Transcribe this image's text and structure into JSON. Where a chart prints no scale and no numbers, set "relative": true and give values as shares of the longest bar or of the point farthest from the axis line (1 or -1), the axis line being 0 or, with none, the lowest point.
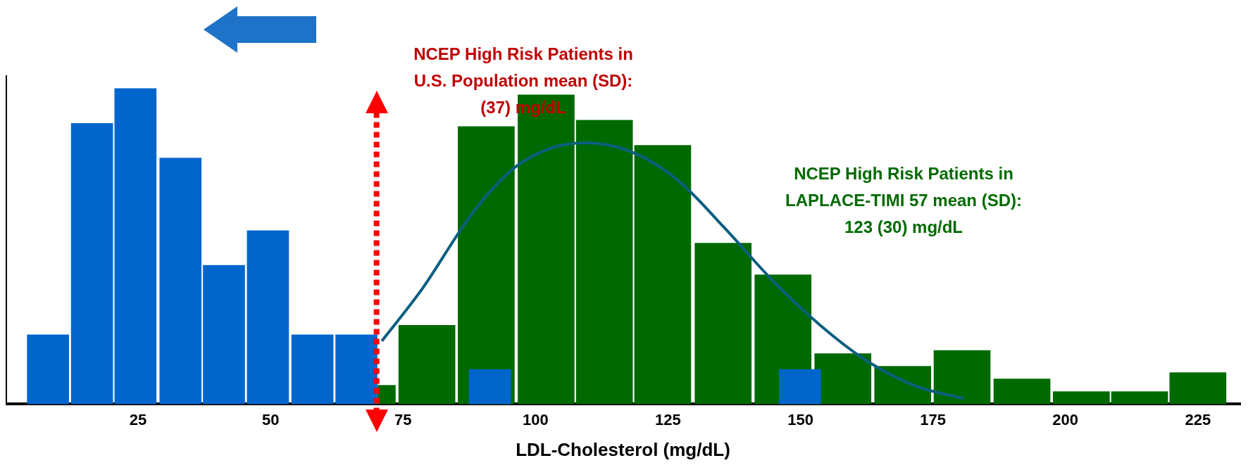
{
  "chart_data": {
    "type": "bar",
    "relative": true,
    "xlabel": "LDL-Cholesterol (mg/dL)",
    "xlim": [
      0,
      233
    ],
    "xticks": [
      25,
      50,
      75,
      100,
      125,
      150,
      175,
      200,
      225
    ],
    "tick_labels": "x",
    "annotations": [
      "NCEP High Risk Patients in\nU.S. Population mean (SD):\n(37) mg/dL",
      "NCEP High Risk Patients in\nLAPLACE-TIMI 57 mean (SD):\n123 (30) mg/dL"
    ],
    "ref_lines": [
      {
        "axis": "x",
        "value": 70,
        "color": "#ff0000",
        "line_style": "dotted"
      }
    ],
    "series": [
      {
        "color": "#0066cc",
        "x": [
          8,
          16.3,
          24.5,
          33,
          41.2,
          49.5,
          57.9,
          66.2,
          91.4,
          149.9
        ],
        "values": [
          0.22,
          0.89,
          1,
          0.78,
          0.44,
          0.55,
          0.22,
          0.22,
          0.11,
          0.11
        ]
      },
      {
        "type": "line",
        "color": "#0b5f80",
        "x": [
          71,
          78.6,
          87.7,
          95.2,
          102.7,
          109.4,
          117.7,
          126.7,
          135.7,
          144.8,
          153.8,
          162.8,
          171.8,
          180.8
        ],
        "values": [
          0.2,
          0.365,
          0.596,
          0.738,
          0.81,
          0.828,
          0.802,
          0.712,
          0.558,
          0.391,
          0.249,
          0.134,
          0.057,
          0.018
        ]
      },
      {
        "color": "#006a00",
        "x": [
          71.9
        ],
        "values": [
          0.06
        ]
      },
      {
        "color": "#006a00",
        "x": [
          79.5,
          90.7,
          102,
          113,
          124,
          135.4,
          146.7,
          158,
          169.3,
          180.5,
          191.8,
          203,
          214,
          225
        ],
        "values": [
          0.25,
          0.88,
          0.98,
          0.9,
          0.82,
          0.51,
          0.41,
          0.16,
          0.12,
          0.17,
          0.08,
          0.04,
          0.04,
          0.1
        ]
      }
    ]
  }
}
